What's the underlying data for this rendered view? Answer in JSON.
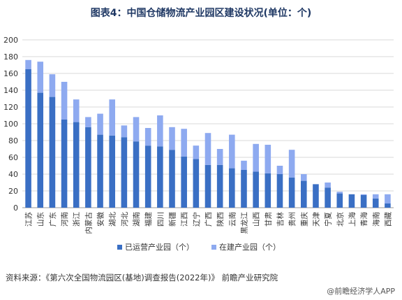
{
  "title": "图表4：中国仓储物流产业园区建设状况(单位：个)",
  "source": "资料来源：《第六次全国物流园区(基地)调查报告(2022年)》 前瞻产业研究院",
  "brand": "@前瞻经济学人APP",
  "colors": {
    "operating": "#3a6fc4",
    "building": "#8eaaf0",
    "title": "#1f3864"
  },
  "chart_data": {
    "type": "bar",
    "stacked": true,
    "title": "图表4：中国仓储物流产业园区建设状况(单位：个)",
    "categories": [
      "江苏",
      "山东",
      "广东",
      "河南",
      "浙江",
      "内蒙古",
      "安徽",
      "湖北",
      "河北",
      "湖南",
      "福建",
      "四川",
      "新疆",
      "江西",
      "辽宁",
      "广西",
      "陕西",
      "云南",
      "黑龙江",
      "山西",
      "甘肃",
      "吉林",
      "贵州",
      "重庆",
      "天津",
      "宁夏",
      "北京",
      "上海",
      "青海",
      "海南",
      "西藏"
    ],
    "series": [
      {
        "name": "已运营产业园（个）",
        "values": [
          165,
          137,
          132,
          105,
          102,
          96,
          87,
          86,
          84,
          79,
          74,
          73,
          69,
          61,
          58,
          51,
          51,
          47,
          45,
          43,
          41,
          40,
          36,
          32,
          28,
          24,
          17,
          16,
          15,
          11,
          5
        ]
      },
      {
        "name": "在建产业园（个）",
        "values": [
          11,
          37,
          27,
          45,
          27,
          12,
          25,
          43,
          14,
          29,
          21,
          37,
          27,
          33,
          16,
          38,
          19,
          40,
          11,
          33,
          34,
          10,
          33,
          8,
          0,
          6,
          2,
          0,
          1,
          5,
          11
        ]
      }
    ],
    "ylim": [
      0,
      200
    ],
    "yticks": [
      0,
      20,
      40,
      60,
      80,
      100,
      120,
      140,
      160,
      180,
      200
    ],
    "grid": true,
    "legend": "bottom"
  }
}
